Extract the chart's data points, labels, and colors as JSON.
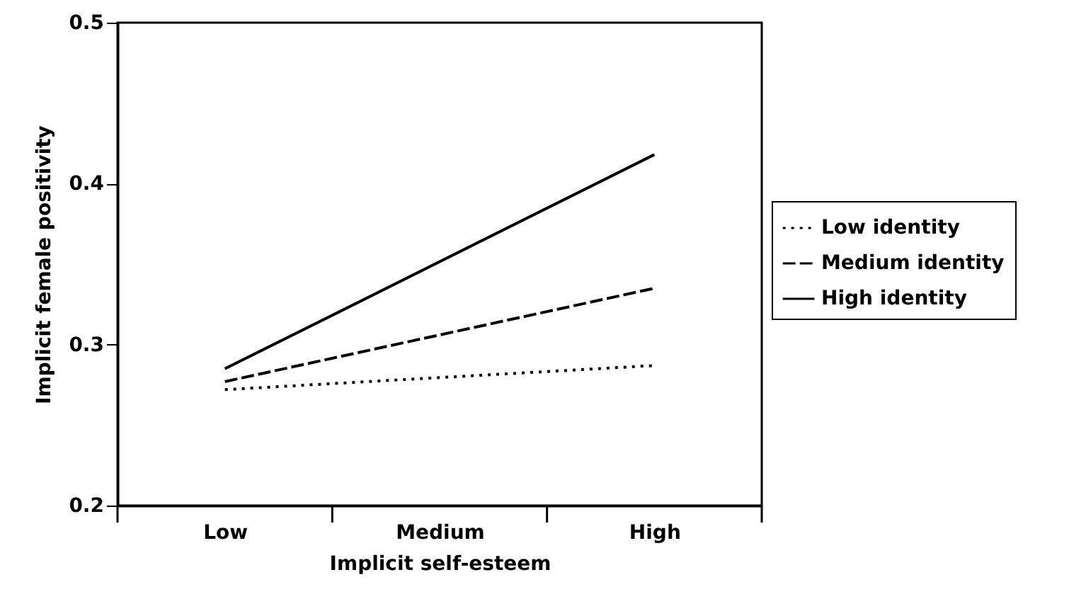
{
  "chart_data": {
    "type": "line",
    "xlabel": "Implicit self-esteem",
    "ylabel": "Implicit female positivity",
    "categories": [
      "Low",
      "Medium",
      "High"
    ],
    "series": [
      {
        "name": "Low identity",
        "color": "#000000",
        "line_style": "dotted",
        "values": [
          0.272,
          null,
          0.287
        ]
      },
      {
        "name": "Medium identity",
        "color": "#000000",
        "line_style": "dashed",
        "values": [
          0.277,
          null,
          0.335
        ]
      },
      {
        "name": "High identity",
        "color": "#000000",
        "line_style": "solid",
        "values": [
          0.285,
          null,
          0.418
        ]
      }
    ],
    "ylim": [
      0.2,
      0.5
    ],
    "yticks": [
      0.2,
      0.3,
      0.4,
      0.5
    ],
    "grid": false,
    "legend": "right",
    "marker": "none"
  }
}
